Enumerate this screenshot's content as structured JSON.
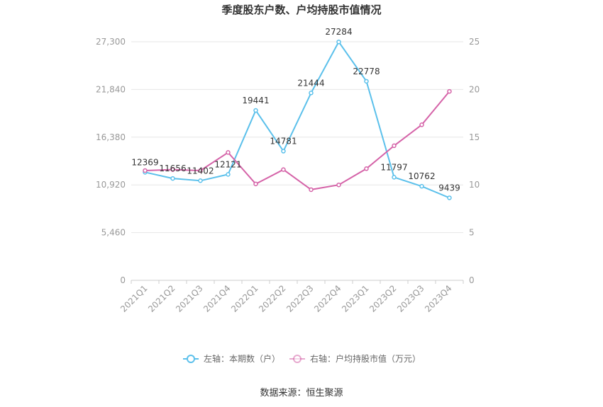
{
  "chart_data": {
    "type": "line",
    "title": "季度股东户数、户均持股市值情况",
    "categories": [
      "2021Q1",
      "2021Q2",
      "2021Q3",
      "2021Q4",
      "2022Q1",
      "2022Q2",
      "2022Q3",
      "2022Q4",
      "2023Q1",
      "2023Q2",
      "2023Q3",
      "2023Q4"
    ],
    "left_axis": {
      "ticks": [
        "0",
        "5,460",
        "10,920",
        "16,380",
        "21,840",
        "27,300"
      ],
      "ylim": [
        0,
        27300
      ]
    },
    "right_axis": {
      "ticks": [
        "0",
        "5",
        "10",
        "15",
        "20",
        "25"
      ],
      "ylim": [
        0,
        25
      ]
    },
    "series": [
      {
        "name": "左轴：本期数（户）",
        "axis": "left",
        "color": "#5bc0eb",
        "values": [
          12369,
          11656,
          11402,
          12121,
          19441,
          14781,
          21444,
          27284,
          22778,
          11797,
          10762,
          9439
        ],
        "labels": [
          "12369",
          "11656",
          "11402",
          "12121",
          "19441",
          "14781",
          "21444",
          "27284",
          "22778",
          "11797",
          "10762",
          "9439"
        ]
      },
      {
        "name": "右轴：户均持股市值（万元）",
        "axis": "right",
        "color": "#d563a8",
        "values": [
          11.5,
          11.6,
          11.5,
          13.4,
          10.1,
          11.6,
          9.5,
          10.0,
          11.7,
          14.1,
          16.3,
          19.8
        ]
      }
    ],
    "grid": true,
    "legend_position": "bottom"
  },
  "source": "数据来源：恒生聚源"
}
